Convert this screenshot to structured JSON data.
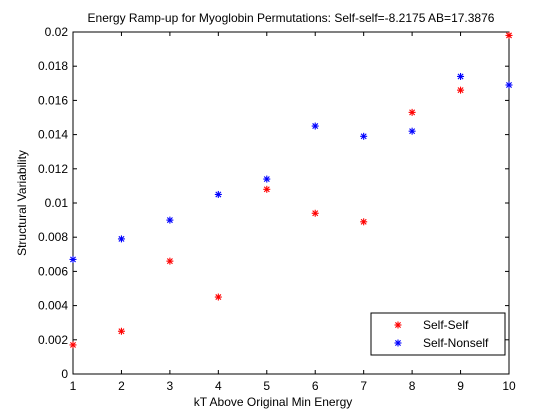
{
  "chart_data": {
    "type": "scatter",
    "title": "Energy Ramp-up for Myoglobin Permutations:  Self-self=-8.2175 AB=17.3876",
    "xlabel": "kT Above Original Min Energy",
    "ylabel": "Structural Variability",
    "xlim": [
      1,
      10
    ],
    "ylim": [
      0,
      0.02
    ],
    "xticks": [
      "1",
      "2",
      "3",
      "4",
      "5",
      "6",
      "7",
      "8",
      "9",
      "10"
    ],
    "yticks": [
      "0",
      "0.002",
      "0.004",
      "0.006",
      "0.008",
      "0.01",
      "0.012",
      "0.014",
      "0.016",
      "0.018",
      "0.02"
    ],
    "grid": false,
    "legend_position": "bottom-right",
    "marker": "*",
    "series": [
      {
        "name": "Self-Self",
        "color": "#ff0000",
        "x": [
          1,
          2,
          3,
          4,
          5,
          6,
          7,
          8,
          9,
          10
        ],
        "y": [
          0.0017,
          0.0025,
          0.0066,
          0.0045,
          0.0108,
          0.0094,
          0.0089,
          0.0153,
          0.0166,
          0.0198
        ]
      },
      {
        "name": "Self-Nonself",
        "color": "#0000ff",
        "x": [
          1,
          2,
          3,
          4,
          5,
          6,
          7,
          8,
          9,
          10
        ],
        "y": [
          0.0067,
          0.0079,
          0.009,
          0.0105,
          0.0114,
          0.0145,
          0.0139,
          0.0142,
          0.0174,
          0.0169
        ]
      }
    ]
  }
}
